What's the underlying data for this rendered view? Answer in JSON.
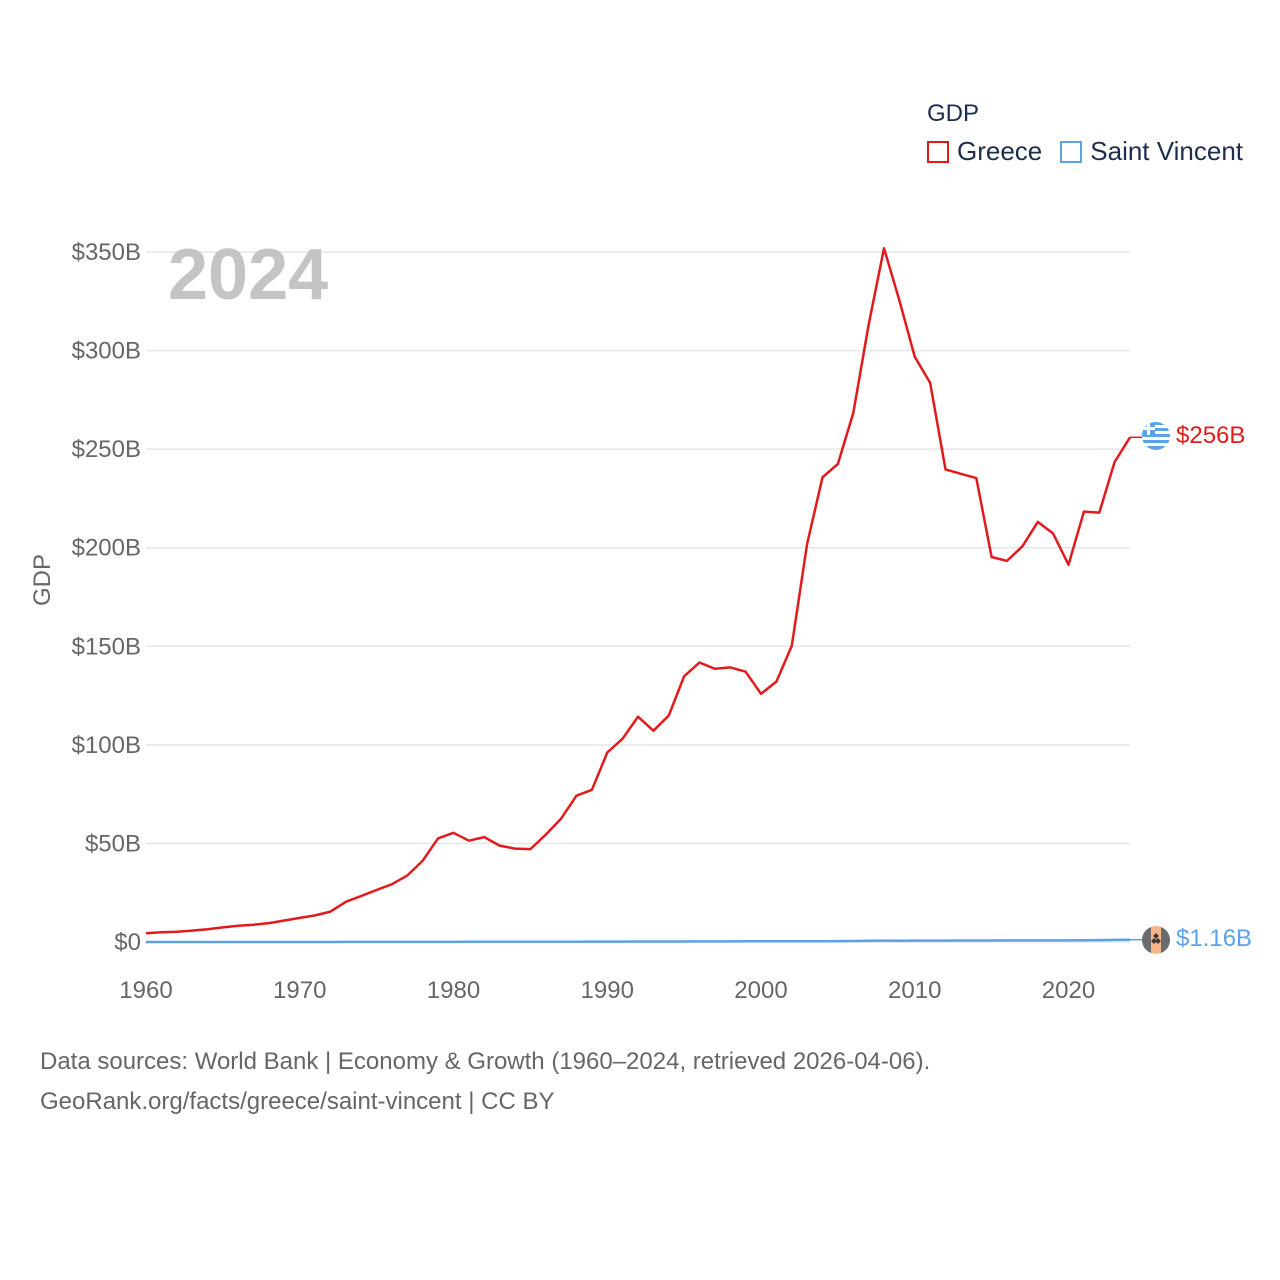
{
  "colors": {
    "greece": "#e31a1c",
    "saint_vincent": "#5ba3e6",
    "grid": "#e6e6e6",
    "axis_text": "#666666",
    "year_label": "#c4c4c4"
  },
  "legend": {
    "title": "GDP",
    "items": [
      "Greece",
      "Saint Vincent"
    ]
  },
  "year_label": "2024",
  "footer": {
    "line1": "Data sources: World Bank | Economy & Growth (1960–2024, retrieved 2026-04-06).",
    "line2": "GeoRank.org/facts/greece/saint-vincent | CC BY"
  },
  "chart_data": {
    "type": "line",
    "title": "",
    "xlabel": "",
    "ylabel": "GDP",
    "xlim": [
      1960,
      2024
    ],
    "ylim": [
      0,
      350
    ],
    "y_unit": "billion USD",
    "x_ticks": [
      1960,
      1970,
      1980,
      1990,
      2000,
      2010,
      2020
    ],
    "y_ticks": [
      0,
      50,
      100,
      150,
      200,
      250,
      300,
      350
    ],
    "y_tick_labels": [
      "$0",
      "$50B",
      "$100B",
      "$150B",
      "$200B",
      "$250B",
      "$300B",
      "$350B"
    ],
    "x": [
      1960,
      1961,
      1962,
      1963,
      1964,
      1965,
      1966,
      1967,
      1968,
      1969,
      1970,
      1971,
      1972,
      1973,
      1974,
      1975,
      1976,
      1977,
      1978,
      1979,
      1980,
      1981,
      1982,
      1983,
      1984,
      1985,
      1986,
      1987,
      1988,
      1989,
      1990,
      1991,
      1992,
      1993,
      1994,
      1995,
      1996,
      1997,
      1998,
      1999,
      2000,
      2001,
      2002,
      2003,
      2004,
      2005,
      2006,
      2007,
      2008,
      2009,
      2010,
      2011,
      2012,
      2013,
      2014,
      2015,
      2016,
      2017,
      2018,
      2019,
      2020,
      2021,
      2022,
      2023,
      2024
    ],
    "series": [
      {
        "name": "Greece",
        "end_label": "$256B",
        "values": [
          4.4,
          4.9,
          5.2,
          5.8,
          6.5,
          7.4,
          8.2,
          8.8,
          9.6,
          10.9,
          12.2,
          13.5,
          15.4,
          20.4,
          23.4,
          26.4,
          29.3,
          33.8,
          41.3,
          52.6,
          55.4,
          51.4,
          53.2,
          48.9,
          47.4,
          47.1,
          54.5,
          62.6,
          74.2,
          77.2,
          96.1,
          103.1,
          114.3,
          107.2,
          114.9,
          134.8,
          141.8,
          138.6,
          139.3,
          137.1,
          125.9,
          132.1,
          150.3,
          201.9,
          235.7,
          242.5,
          268.4,
          313.0,
          351.9,
          325.4,
          296.8,
          283.7,
          239.7,
          237.5,
          235.3,
          195.3,
          193.3,
          200.7,
          213.1,
          207.2,
          191.4,
          218.3,
          217.8,
          243.5,
          256.0
        ]
      },
      {
        "name": "Saint Vincent",
        "end_label": "$1.16B",
        "values": [
          0.01,
          0.01,
          0.01,
          0.01,
          0.01,
          0.01,
          0.01,
          0.01,
          0.02,
          0.02,
          0.02,
          0.02,
          0.02,
          0.03,
          0.03,
          0.03,
          0.04,
          0.04,
          0.05,
          0.06,
          0.07,
          0.08,
          0.09,
          0.1,
          0.11,
          0.12,
          0.13,
          0.15,
          0.17,
          0.18,
          0.2,
          0.22,
          0.24,
          0.25,
          0.25,
          0.27,
          0.29,
          0.3,
          0.32,
          0.34,
          0.34,
          0.36,
          0.38,
          0.39,
          0.42,
          0.46,
          0.51,
          0.6,
          0.7,
          0.67,
          0.69,
          0.7,
          0.71,
          0.74,
          0.76,
          0.77,
          0.79,
          0.81,
          0.82,
          0.83,
          0.81,
          0.88,
          0.95,
          1.07,
          1.16
        ]
      }
    ]
  }
}
